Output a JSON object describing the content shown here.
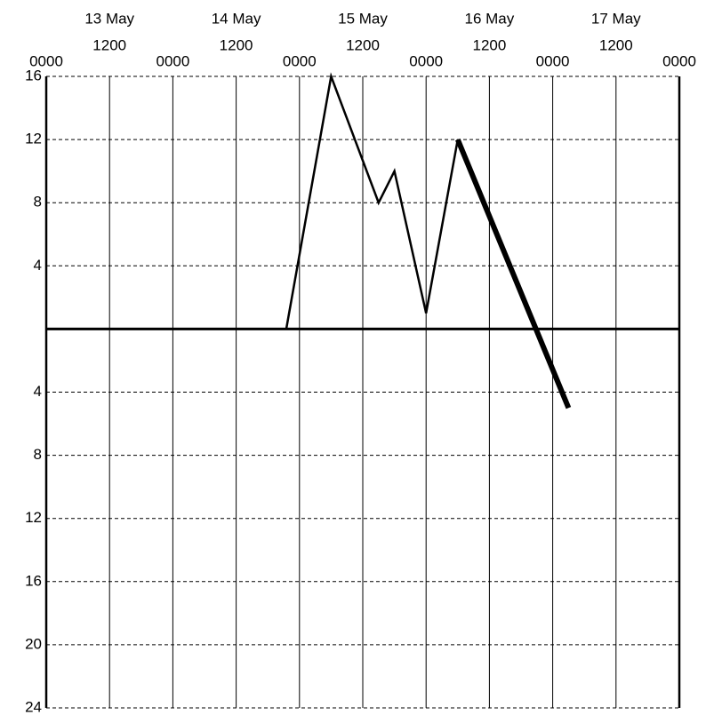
{
  "chart_data": {
    "type": "line",
    "xlim": [
      "13 May 0000",
      "18 May 0000"
    ],
    "xticks": [
      {
        "value": "13 May 0000",
        "label": "0000"
      },
      {
        "value": "13 May 1200",
        "label": "1200"
      },
      {
        "value": "14 May 0000",
        "label": "0000"
      },
      {
        "value": "14 May 1200",
        "label": "1200"
      },
      {
        "value": "15 May 0000",
        "label": "0000"
      },
      {
        "value": "15 May 1200",
        "label": "1200"
      },
      {
        "value": "16 May 0000",
        "label": "0000"
      },
      {
        "value": "16 May 1200",
        "label": "1200"
      },
      {
        "value": "17 May 0000",
        "label": "0000"
      },
      {
        "value": "17 May 1200",
        "label": "1200"
      },
      {
        "value": "18 May 0000",
        "label": "0000"
      }
    ],
    "xticks_major": [
      {
        "value": "13 May 1200",
        "label": "13 May"
      },
      {
        "value": "14 May 1200",
        "label": "14 May"
      },
      {
        "value": "15 May 1200",
        "label": "15 May"
      },
      {
        "value": "16 May 1200",
        "label": "16 May"
      },
      {
        "value": "17 May 1200",
        "label": "17 May"
      }
    ],
    "ylim": [
      -24,
      16
    ],
    "yticks": [
      16,
      12,
      8,
      4,
      {
        "value": -4,
        "label": "4"
      },
      {
        "value": -8,
        "label": "8"
      },
      {
        "value": -12,
        "label": "12"
      },
      {
        "value": -16,
        "label": "16"
      },
      {
        "value": -20,
        "label": "20"
      },
      {
        "value": -24,
        "label": "24"
      }
    ],
    "grid": true,
    "series": [
      {
        "color": "#000000",
        "line_width": 2.5,
        "x": [
          "14 May 2130",
          "15 May 0600",
          "15 May 1500",
          "15 May 1800",
          "16 May 0000",
          "16 May 0600"
        ],
        "values": [
          0,
          16,
          8,
          10,
          1,
          12
        ]
      },
      {
        "color": "#000000",
        "line_width": 6,
        "x": [
          "16 May 0600",
          "17 May 0300"
        ],
        "values": [
          12,
          -5
        ]
      }
    ]
  }
}
